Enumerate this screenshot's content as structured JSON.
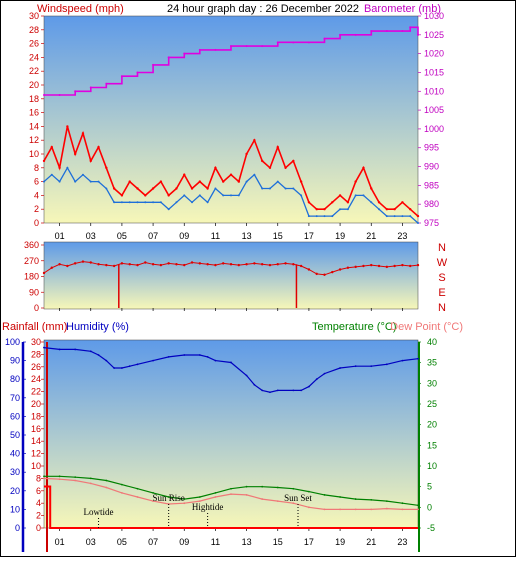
{
  "header": {
    "title": "24 hour graph day : 26 December 2022",
    "wind_label": "Windspeed (mph)",
    "baro_label": "Barometer (mb)",
    "rain_label": "Rainfall (mm)",
    "humidity_label": "Humidity (%)",
    "temp_label": "Temperature (°C)",
    "dew_label": "Dew Point (°C)"
  },
  "colors": {
    "wind_gust": "#ff0000",
    "wind_avg": "#1e6fd9",
    "barometer": "#e000e0",
    "direction": "#e00000",
    "humidity": "#0000c0",
    "temperature": "#008000",
    "dewpoint": "#f07878",
    "rain": "#ff0000",
    "sky_top": "#5e9ae8",
    "sky_bottom": "#f7f7b8",
    "axis_red": "#cc0000",
    "axis_magenta": "#c000c0",
    "axis_blue": "#0000c0",
    "axis_green": "#008000"
  },
  "chart_data": [
    {
      "type": "line",
      "name": "wind-barometer",
      "x_ticks": [
        "01",
        "03",
        "05",
        "07",
        "09",
        "11",
        "13",
        "15",
        "17",
        "19",
        "21",
        "23"
      ],
      "xlim": [
        0,
        24
      ],
      "wind": {
        "ylim": [
          0,
          30
        ],
        "ticks": [
          0,
          2,
          4,
          6,
          8,
          10,
          12,
          14,
          16,
          18,
          20,
          22,
          24,
          26,
          28,
          30
        ],
        "gust": {
          "x": [
            0.0,
            0.5,
            1.0,
            1.5,
            2.0,
            2.5,
            3.0,
            3.5,
            4.0,
            4.5,
            5.0,
            5.5,
            6.0,
            6.5,
            7.0,
            7.5,
            8.0,
            8.5,
            9.0,
            9.5,
            10.0,
            10.5,
            11.0,
            11.5,
            12.0,
            12.5,
            13.0,
            13.5,
            14.0,
            14.5,
            15.0,
            15.5,
            16.0,
            16.5,
            17.0,
            17.5,
            18.0,
            18.5,
            19.0,
            19.5,
            20.0,
            20.5,
            21.0,
            21.5,
            22.0,
            22.5,
            23.0,
            23.5,
            24.0
          ],
          "y": [
            9,
            11,
            8,
            14,
            10,
            13,
            9,
            11,
            8,
            5,
            4,
            6,
            5,
            4,
            5,
            6,
            4,
            5,
            7,
            5,
            6,
            5,
            8,
            6,
            7,
            6,
            10,
            12,
            9,
            8,
            11,
            8,
            9,
            6,
            3,
            2,
            2,
            3,
            4,
            3,
            6,
            8,
            5,
            3,
            2,
            2,
            3,
            2,
            1
          ]
        },
        "average": {
          "x": [
            0.0,
            0.5,
            1.0,
            1.5,
            2.0,
            2.5,
            3.0,
            3.5,
            4.0,
            4.5,
            5.0,
            5.5,
            6.0,
            6.5,
            7.0,
            7.5,
            8.0,
            8.5,
            9.0,
            9.5,
            10.0,
            10.5,
            11.0,
            11.5,
            12.0,
            12.5,
            13.0,
            13.5,
            14.0,
            14.5,
            15.0,
            15.5,
            16.0,
            16.5,
            17.0,
            17.5,
            18.0,
            18.5,
            19.0,
            19.5,
            20.0,
            20.5,
            21.0,
            21.5,
            22.0,
            22.5,
            23.0,
            23.5,
            24.0
          ],
          "y": [
            6,
            7,
            6,
            8,
            6,
            7,
            6,
            6,
            5,
            3,
            3,
            3,
            3,
            3,
            3,
            3,
            2,
            3,
            4,
            3,
            4,
            3,
            5,
            4,
            4,
            4,
            6,
            7,
            5,
            5,
            6,
            5,
            5,
            4,
            1,
            1,
            1,
            1,
            2,
            2,
            4,
            4,
            3,
            2,
            1,
            1,
            1,
            1,
            0
          ]
        }
      },
      "barometer": {
        "ylim": [
          975,
          1030
        ],
        "ticks": [
          975,
          980,
          985,
          990,
          995,
          1000,
          1005,
          1010,
          1015,
          1020,
          1025,
          1030
        ],
        "x": [
          0.0,
          1.0,
          2.0,
          3.0,
          4.0,
          5.0,
          6.0,
          7.0,
          8.0,
          9.0,
          10.0,
          11.0,
          12.0,
          13.0,
          14.0,
          15.0,
          16.0,
          17.0,
          18.0,
          19.0,
          20.0,
          21.0,
          22.0,
          23.0,
          23.5,
          24.0
        ],
        "y": [
          1009,
          1009,
          1010,
          1011,
          1012,
          1014,
          1015,
          1017,
          1019,
          1020,
          1021,
          1021,
          1022,
          1022,
          1022,
          1023,
          1023,
          1023,
          1024,
          1025,
          1025,
          1026,
          1026,
          1026,
          1027,
          1025
        ]
      }
    },
    {
      "type": "scatter",
      "name": "wind-direction",
      "x_ticks": [
        "01",
        "03",
        "05",
        "07",
        "09",
        "11",
        "13",
        "15",
        "17",
        "19",
        "21",
        "23"
      ],
      "xlim": [
        0,
        24
      ],
      "ylim": [
        0,
        360
      ],
      "ticks": [
        0,
        90,
        180,
        270,
        360
      ],
      "compass": [
        "N",
        "W",
        "S",
        "E",
        "N"
      ],
      "x": [
        0.0,
        0.5,
        1.0,
        1.5,
        2.0,
        2.5,
        3.0,
        3.5,
        4.0,
        4.5,
        5.0,
        5.5,
        6.0,
        6.5,
        7.0,
        7.5,
        8.0,
        8.5,
        9.0,
        9.5,
        10.0,
        10.5,
        11.0,
        11.5,
        12.0,
        12.5,
        13.0,
        13.5,
        14.0,
        14.5,
        15.0,
        15.5,
        16.0,
        16.5,
        17.0,
        17.5,
        18.0,
        18.5,
        19.0,
        19.5,
        20.0,
        20.5,
        21.0,
        21.5,
        22.0,
        22.5,
        23.0,
        23.5,
        24.0
      ],
      "y": [
        200,
        230,
        250,
        240,
        255,
        265,
        260,
        250,
        245,
        240,
        255,
        250,
        245,
        260,
        250,
        245,
        255,
        250,
        245,
        260,
        255,
        250,
        245,
        255,
        250,
        245,
        250,
        255,
        250,
        245,
        250,
        255,
        250,
        240,
        220,
        195,
        190,
        205,
        220,
        230,
        235,
        240,
        245,
        240,
        235,
        240,
        245,
        240,
        245
      ],
      "outliers": [
        {
          "x": 4.8,
          "y": 0
        },
        {
          "x": 16.2,
          "y": 0
        }
      ]
    },
    {
      "type": "line",
      "name": "rain-humidity-temperature",
      "x_ticks": [
        "01",
        "03",
        "05",
        "07",
        "09",
        "11",
        "13",
        "15",
        "17",
        "19",
        "21",
        "23"
      ],
      "xlim": [
        0,
        24
      ],
      "humidity": {
        "ylim": [
          0,
          100
        ],
        "ticks": [
          0,
          10,
          20,
          30,
          40,
          50,
          60,
          70,
          80,
          90,
          100
        ],
        "x": [
          0.0,
          1.0,
          2.0,
          3.0,
          3.5,
          4.0,
          4.5,
          5.0,
          5.5,
          6.0,
          7.0,
          8.0,
          9.0,
          10.0,
          10.5,
          11.0,
          12.0,
          13.0,
          13.5,
          14.0,
          14.5,
          15.0,
          16.0,
          16.5,
          17.0,
          17.5,
          18.0,
          19.0,
          20.0,
          21.0,
          22.0,
          23.0,
          24.0
        ],
        "y": [
          97,
          96,
          96,
          95,
          93,
          90,
          86,
          86,
          87,
          88,
          90,
          92,
          93,
          93,
          92,
          90,
          89,
          82,
          77,
          74,
          73,
          74,
          74,
          74,
          76,
          80,
          83,
          86,
          87,
          87,
          88,
          90,
          91
        ]
      },
      "rain": {
        "ylim": [
          0,
          30
        ],
        "ticks": [
          0,
          2,
          4,
          6,
          8,
          10,
          12,
          14,
          16,
          18,
          20,
          22,
          24,
          26,
          28,
          30
        ],
        "x": [
          0.0,
          0.4,
          0.4,
          24.0
        ],
        "y": [
          6.7,
          6.7,
          0,
          0
        ]
      },
      "temperature": {
        "ylim": [
          -5,
          40
        ],
        "ticks": [
          -5,
          0,
          5,
          10,
          15,
          20,
          25,
          30,
          35,
          40
        ],
        "series": [
          {
            "name": "Temperature",
            "x": [
              0.0,
              1.0,
              2.0,
              3.0,
              4.0,
              5.0,
              6.0,
              7.0,
              8.0,
              9.0,
              10.0,
              11.0,
              12.0,
              13.0,
              14.0,
              15.0,
              16.0,
              17.0,
              18.0,
              19.0,
              20.0,
              21.0,
              22.0,
              23.0,
              24.0
            ],
            "y": [
              7.5,
              7.5,
              7.3,
              7.0,
              6.5,
              5.5,
              4.5,
              3.5,
              2.5,
              2.0,
              2.5,
              3.5,
              4.5,
              5.0,
              5.0,
              4.8,
              4.5,
              3.8,
              3.0,
              2.5,
              2.0,
              1.8,
              1.5,
              1.0,
              0.5
            ]
          },
          {
            "name": "Dew Point",
            "x": [
              0.0,
              1.0,
              2.0,
              3.0,
              4.0,
              5.0,
              6.0,
              7.0,
              8.0,
              9.0,
              10.0,
              11.0,
              12.0,
              13.0,
              14.0,
              15.0,
              16.0,
              17.0,
              18.0,
              19.0,
              20.0,
              21.0,
              22.0,
              23.0,
              24.0
            ],
            "y": [
              7.0,
              6.8,
              6.5,
              5.8,
              4.8,
              3.5,
              2.5,
              1.5,
              0.8,
              1.0,
              1.5,
              2.5,
              3.2,
              3.0,
              2.0,
              1.5,
              1.0,
              0.0,
              -0.5,
              -0.5,
              -0.5,
              -0.5,
              -0.3,
              -0.5,
              -0.5
            ]
          }
        ]
      },
      "annotations": [
        {
          "text": "Lowtide",
          "x": 3.5
        },
        {
          "text": "Sun Rise",
          "x": 8.0
        },
        {
          "text": "Hightide",
          "x": 10.5
        },
        {
          "text": "Sun Set",
          "x": 16.3
        }
      ]
    }
  ]
}
